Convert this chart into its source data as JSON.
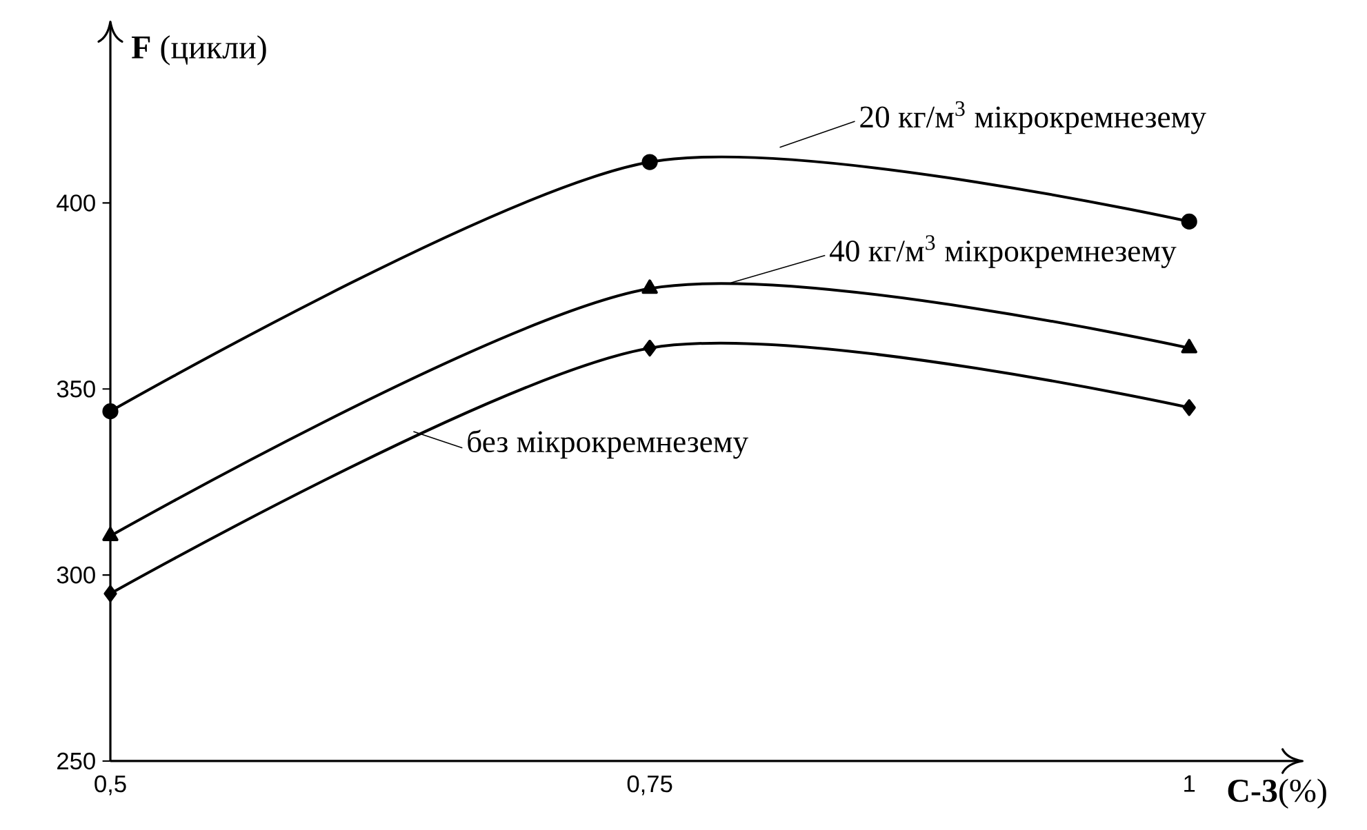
{
  "chart_data": {
    "type": "line",
    "xlabel": "**С-3**(%)",
    "ylabel": "**F** (цикли)",
    "x": [
      0.5,
      0.75,
      1
    ],
    "series": [
      {
        "name": "20 кг/м$^{3}$ мікрокремнезему",
        "color": "#000000",
        "marker": "circle",
        "values": [
          344,
          411,
          395
        ]
      },
      {
        "name": "40 кг/м$^{3}$ мікрокремнезему",
        "color": "#000000",
        "marker": "triangle",
        "values": [
          310.5,
          377,
          361
        ]
      },
      {
        "name": "без мікрокремнезему",
        "color": "#000000",
        "marker": "diamond",
        "values": [
          295,
          361,
          345
        ]
      }
    ],
    "xlim": [
      0.5,
      1.053
    ],
    "ylim": [
      250,
      449
    ],
    "xticks": [
      {
        "value": 0.5,
        "label": "0,5"
      },
      {
        "value": 0.75,
        "label": "0,75"
      },
      {
        "value": 1,
        "label": "1"
      }
    ],
    "yticks": [
      250,
      300,
      350,
      400
    ],
    "grid": false,
    "legend": "top right",
    "line_style": "solid"
  }
}
